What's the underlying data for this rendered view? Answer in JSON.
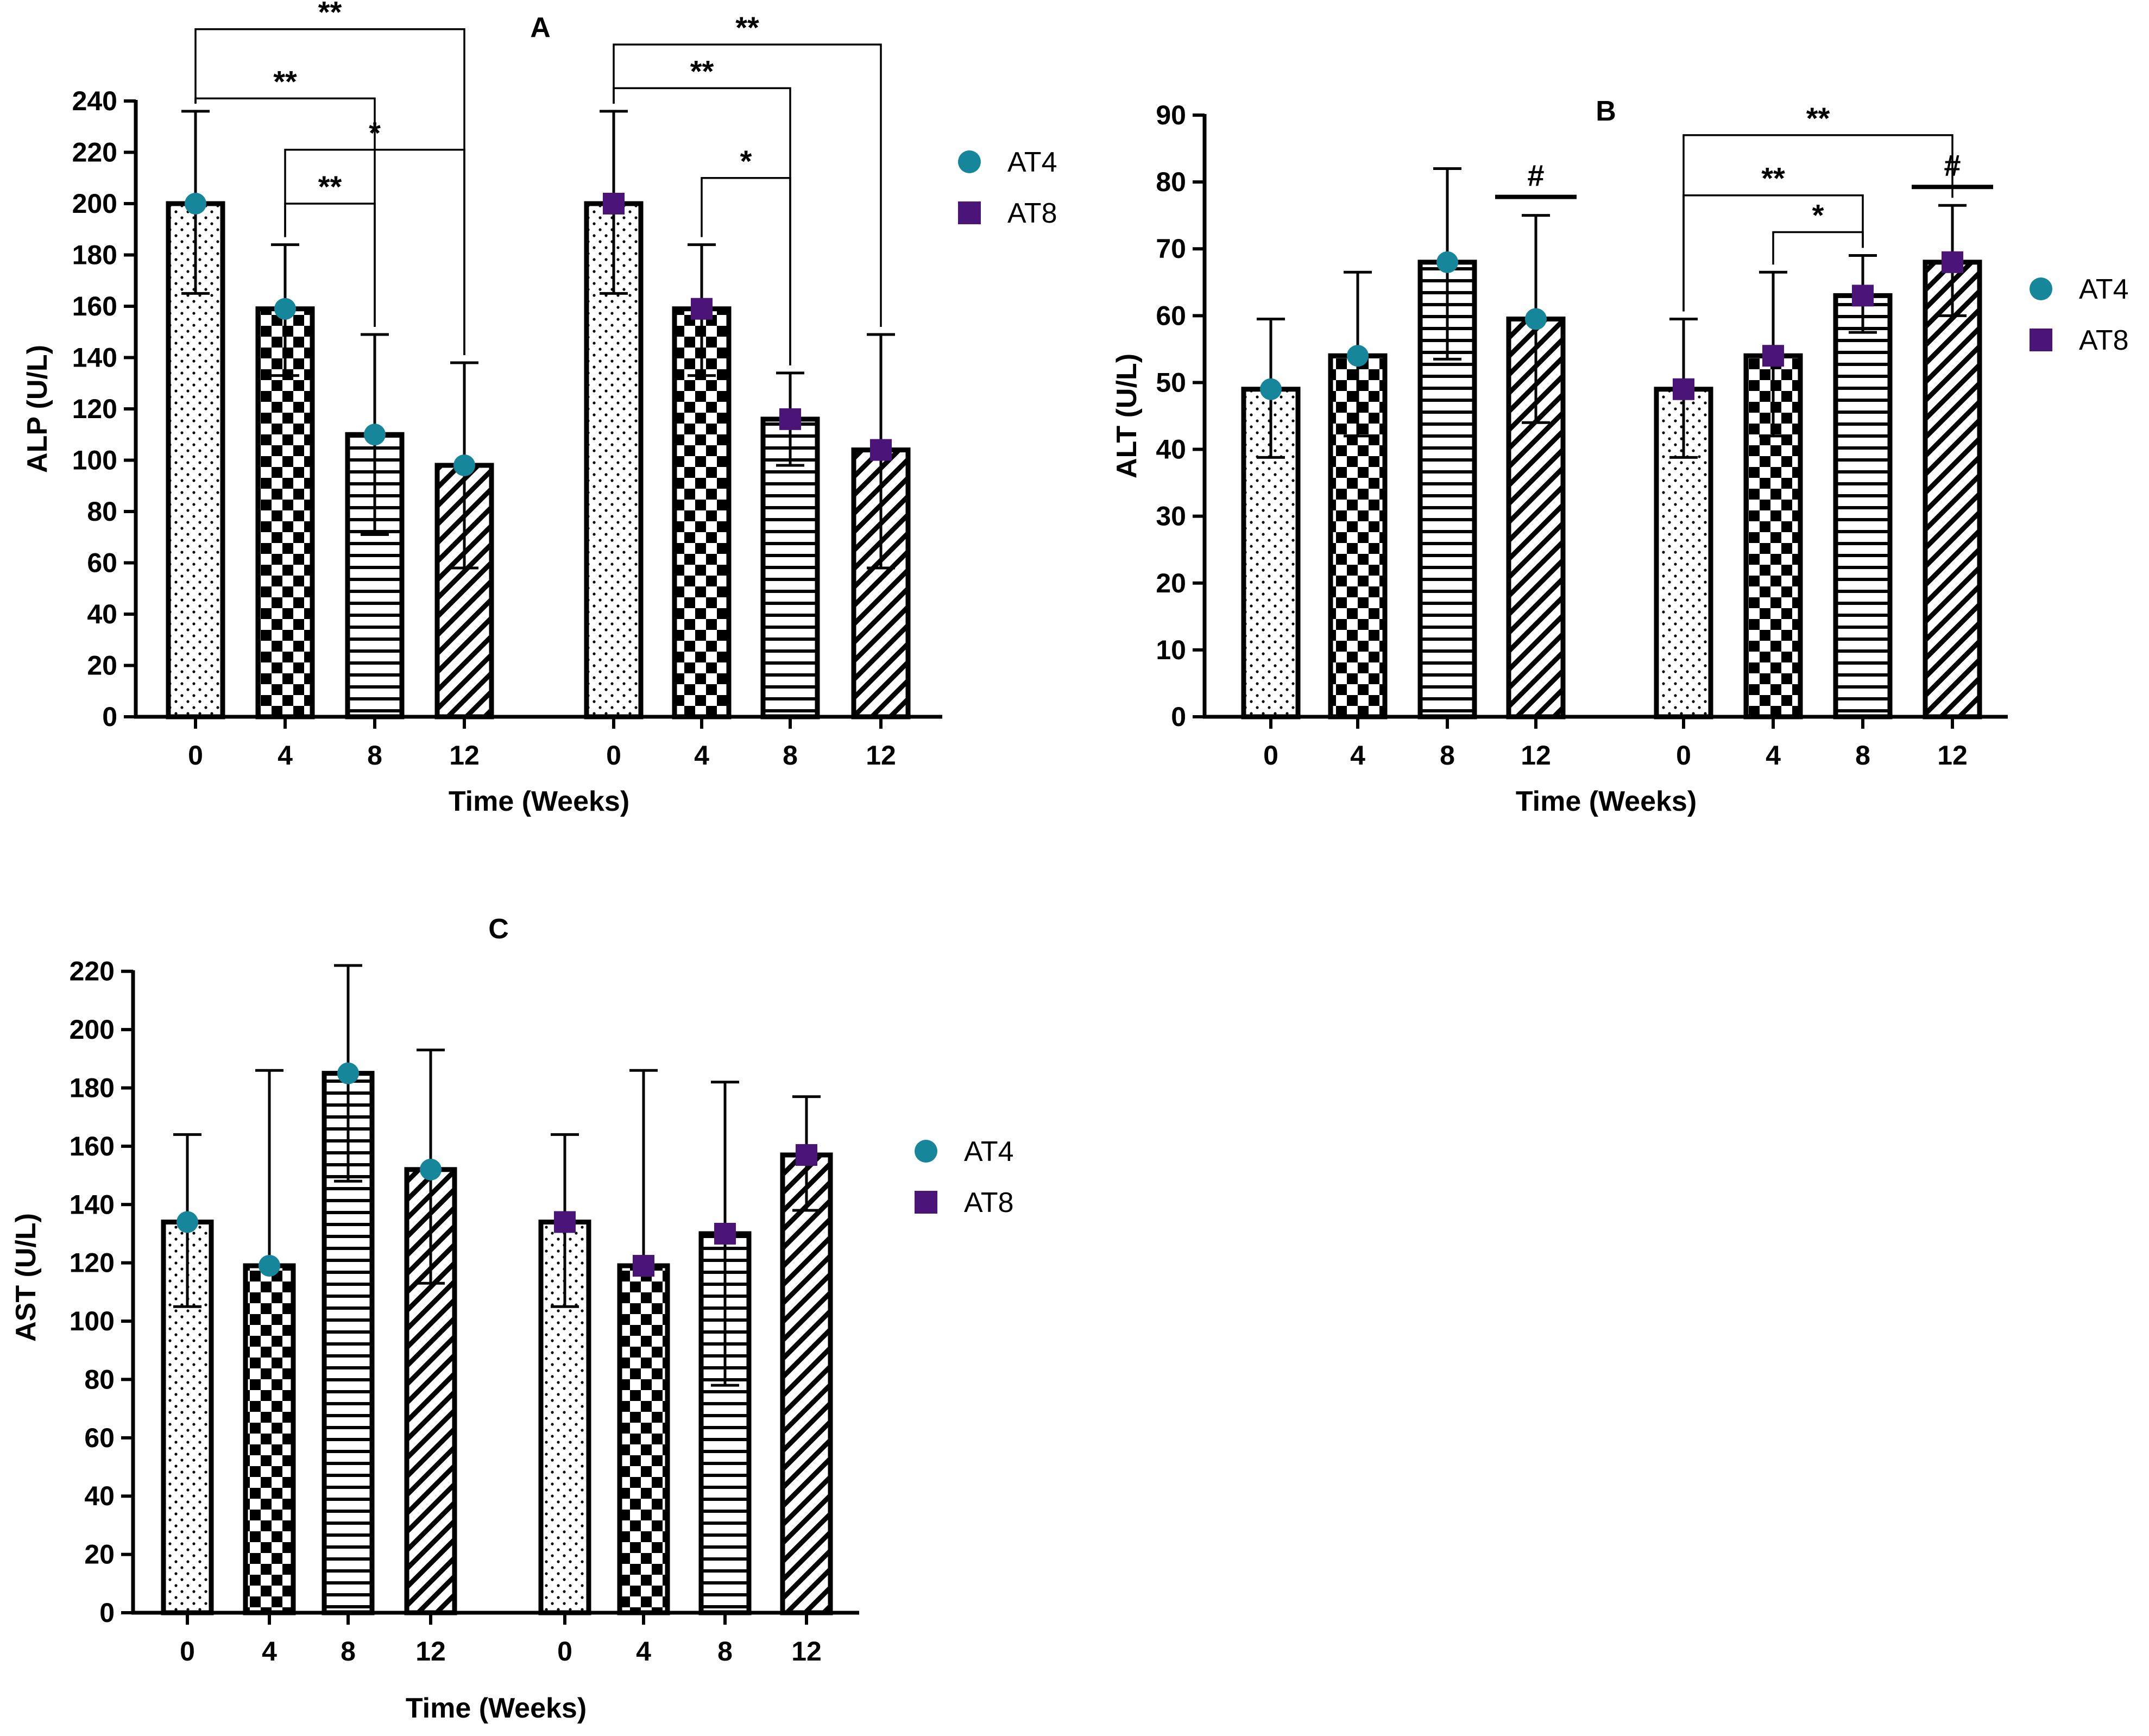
{
  "legend": [
    {
      "name": "AT4",
      "marker": "circle",
      "color": "#16869a"
    },
    {
      "name": "AT8",
      "marker": "square",
      "color": "#4a1478"
    }
  ],
  "chart_data": [
    {
      "panel": "A",
      "type": "bar",
      "ylabel": "ALP (U/L)",
      "xlabel": "Time (Weeks)",
      "ylim": [
        0,
        240
      ],
      "yticks": [
        0,
        20,
        40,
        60,
        80,
        100,
        120,
        140,
        160,
        180,
        200,
        220,
        240
      ],
      "categories": [
        "0",
        "4",
        "8",
        "12"
      ],
      "patterns": [
        "dots",
        "checker",
        "hstripes",
        "diagonal"
      ],
      "series": [
        {
          "name": "AT4",
          "values": [
            200,
            159,
            110,
            98
          ],
          "err_high": [
            236,
            184,
            149,
            138
          ],
          "err_low": [
            165,
            133,
            71,
            58
          ]
        },
        {
          "name": "AT8",
          "values": [
            200,
            159,
            116,
            104
          ],
          "err_high": [
            236,
            184,
            134,
            149
          ],
          "err_low": [
            165,
            133,
            98,
            58
          ]
        }
      ],
      "annotations": [
        {
          "series": 0,
          "from": 0,
          "to": 3,
          "level": 268,
          "label": "**"
        },
        {
          "series": 0,
          "from": 0,
          "to": 2,
          "level": 241,
          "label": "**"
        },
        {
          "series": 0,
          "from": 1,
          "to": 3,
          "level": 221,
          "label": "*"
        },
        {
          "series": 0,
          "from": 1,
          "to": 2,
          "level": 200,
          "label": "**"
        },
        {
          "series": 1,
          "from": 0,
          "to": 3,
          "level": 262,
          "label": "**"
        },
        {
          "series": 1,
          "from": 0,
          "to": 2,
          "level": 245,
          "label": "**"
        },
        {
          "series": 1,
          "from": 1,
          "to": 2,
          "level": 210,
          "label": "*"
        }
      ]
    },
    {
      "panel": "B",
      "type": "bar",
      "ylabel": "ALT (U/L)",
      "xlabel": "Time (Weeks)",
      "ylim": [
        0,
        90
      ],
      "yticks": [
        0,
        10,
        20,
        30,
        40,
        50,
        60,
        70,
        80,
        90
      ],
      "categories": [
        "0",
        "4",
        "8",
        "12"
      ],
      "patterns": [
        "dots",
        "checker",
        "hstripes",
        "diagonal"
      ],
      "series": [
        {
          "name": "AT4",
          "values": [
            49,
            54,
            68,
            59.5
          ],
          "err_high": [
            59.5,
            66.5,
            82,
            75
          ],
          "err_low": [
            38.8,
            42,
            53.5,
            44
          ]
        },
        {
          "name": "AT8",
          "values": [
            49,
            54,
            63,
            68
          ],
          "err_high": [
            59.5,
            66.5,
            69,
            76.5
          ],
          "err_low": [
            38.8,
            42,
            57.5,
            60
          ]
        }
      ],
      "annotations": [
        {
          "series": 1,
          "from": 0,
          "to": 3,
          "level": 87,
          "label": "**"
        },
        {
          "series": 1,
          "from": 0,
          "to": 2,
          "level": 78,
          "label": "**"
        },
        {
          "series": 1,
          "from": 1,
          "to": 2,
          "level": 72.5,
          "label": "*"
        }
      ],
      "markers": [
        {
          "series": 0,
          "index": 3,
          "label": "#"
        },
        {
          "series": 1,
          "index": 3,
          "label": "#"
        }
      ]
    },
    {
      "panel": "C",
      "type": "bar",
      "ylabel": "AST (U/L)",
      "xlabel": "Time (Weeks)",
      "ylim": [
        0,
        230
      ],
      "yticks": [
        0,
        20,
        40,
        60,
        80,
        100,
        120,
        140,
        160,
        180,
        200,
        220
      ],
      "categories": [
        "0",
        "4",
        "8",
        "12"
      ],
      "patterns": [
        "dots",
        "checker",
        "hstripes",
        "diagonal"
      ],
      "series": [
        {
          "name": "AT4",
          "values": [
            134,
            119,
            185,
            152
          ],
          "err_high": [
            164,
            186,
            222,
            193
          ],
          "err_low": [
            105,
            119,
            148,
            113
          ]
        },
        {
          "name": "AT8",
          "values": [
            134,
            119,
            130,
            157
          ],
          "err_high": [
            164,
            186,
            182,
            177
          ],
          "err_low": [
            105,
            119,
            78,
            138
          ]
        }
      ],
      "annotations": []
    }
  ]
}
